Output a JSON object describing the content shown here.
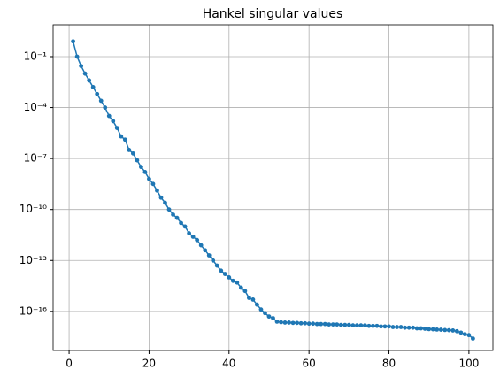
{
  "chart_data": {
    "type": "line",
    "title": "Hankel singular values",
    "x": [
      1,
      2,
      3,
      4,
      5,
      6,
      7,
      8,
      9,
      10,
      11,
      12,
      13,
      14,
      15,
      16,
      17,
      18,
      19,
      20,
      21,
      22,
      23,
      24,
      25,
      26,
      27,
      28,
      29,
      30,
      31,
      32,
      33,
      34,
      35,
      36,
      37,
      38,
      39,
      40,
      41,
      42,
      43,
      44,
      45,
      46,
      47,
      48,
      49,
      50,
      51,
      52,
      53,
      54,
      55,
      56,
      57,
      58,
      59,
      60,
      61,
      62,
      63,
      64,
      65,
      66,
      67,
      68,
      69,
      70,
      71,
      72,
      73,
      74,
      75,
      76,
      77,
      78,
      79,
      80,
      81,
      82,
      83,
      84,
      85,
      86,
      87,
      88,
      89,
      90,
      91,
      92,
      93,
      94,
      95,
      96,
      97,
      98,
      99,
      100,
      101
    ],
    "series": [
      {
        "color": "#1f77b4",
        "values": [
          0.79,
          0.1,
          0.028,
          0.01,
          0.004,
          0.0016,
          0.00063,
          0.00025,
          0.0001,
          3.2e-05,
          1.6e-05,
          6.3e-06,
          2e-06,
          1.3e-06,
          3.2e-07,
          2e-07,
          7.9e-08,
          3.2e-08,
          1.6e-08,
          6.3e-09,
          3.2e-09,
          1.3e-09,
          5e-10,
          2.5e-10,
          1e-10,
          5e-11,
          3.2e-11,
          1.6e-11,
          1e-11,
          4e-12,
          2.5e-12,
          1.6e-12,
          7.9e-13,
          4e-13,
          2e-13,
          1e-13,
          5e-14,
          2.5e-14,
          1.6e-14,
          1e-14,
          6.3e-15,
          5e-15,
          2.5e-15,
          1.6e-15,
          6.3e-16,
          5e-16,
          2.5e-16,
          1.3e-16,
          7.9e-17,
          5e-17,
          4e-17,
          2.5e-17,
          2.3e-17,
          2.2e-17,
          2.2e-17,
          2.1e-17,
          2.1e-17,
          2e-17,
          2e-17,
          1.9e-17,
          1.9e-17,
          1.8e-17,
          1.8e-17,
          1.8e-17,
          1.7e-17,
          1.7e-17,
          1.7e-17,
          1.6e-17,
          1.6e-17,
          1.6e-17,
          1.5e-17,
          1.5e-17,
          1.5e-17,
          1.5e-17,
          1.4e-17,
          1.4e-17,
          1.4e-17,
          1.3e-17,
          1.3e-17,
          1.3e-17,
          1.2e-17,
          1.2e-17,
          1.2e-17,
          1.1e-17,
          1.1e-17,
          1.1e-17,
          1e-17,
          1e-17,
          9.5e-18,
          9e-18,
          8.8e-18,
          8.5e-18,
          8.3e-18,
          8e-18,
          7.8e-18,
          7.5e-18,
          6.8e-18,
          5.6e-18,
          4.5e-18,
          4e-18,
          2.5e-18
        ]
      }
    ],
    "xlim": [
      -4,
      106
    ],
    "xticks": [
      0,
      20,
      40,
      60,
      80,
      100
    ],
    "ylim": [
      5e-19,
      7.5
    ],
    "log_y": true,
    "yticks": [
      {
        "value": 0.1,
        "label": "10⁻¹"
      },
      {
        "value": 0.0001,
        "label": "10⁻⁴"
      },
      {
        "value": 1e-07,
        "label": "10⁻⁷"
      },
      {
        "value": 1e-10,
        "label": "10⁻¹⁰"
      },
      {
        "value": 1e-13,
        "label": "10⁻¹³"
      },
      {
        "value": 1e-16,
        "label": "10⁻¹⁶"
      }
    ],
    "grid": true
  }
}
